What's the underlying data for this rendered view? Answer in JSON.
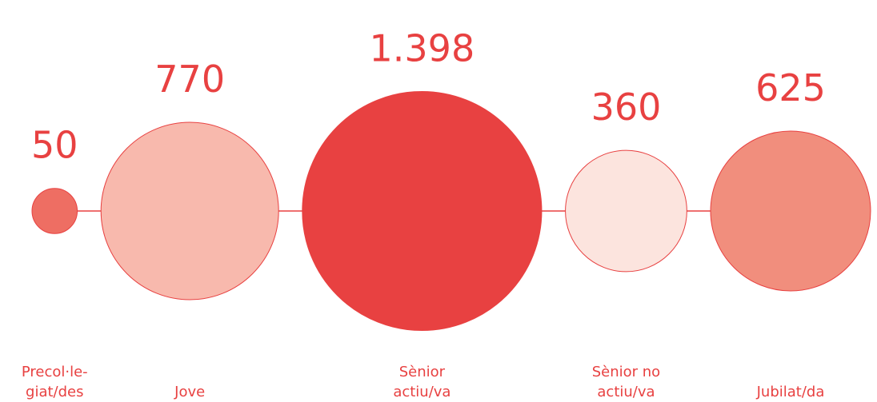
{
  "chart_data": {
    "type": "bubble",
    "categories": [
      [
        "Precol·le-",
        "giat/des"
      ],
      [
        "Jove"
      ],
      [
        "Sènior",
        "actiu/va"
      ],
      [
        "Sènior no",
        "actiu/va"
      ],
      [
        "Jubilat/da"
      ]
    ],
    "values": [
      50,
      770,
      1398,
      360,
      625
    ],
    "value_labels": [
      "50",
      "770",
      "1.398",
      "360",
      "625"
    ],
    "colors": [
      "#ee6e63",
      "#f8b9ad",
      "#e84141",
      "#fce4de",
      "#f18e7d"
    ],
    "line_color": "#e84141"
  }
}
